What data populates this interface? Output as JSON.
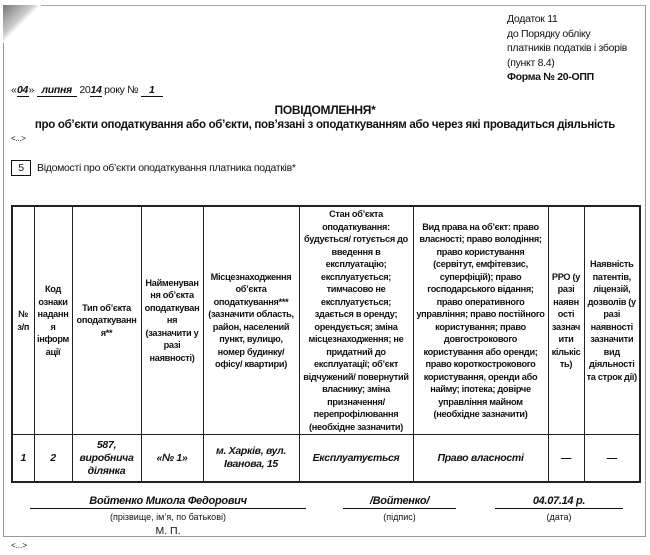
{
  "annex": {
    "lines": [
      "Додаток 11",
      "до Порядку обліку",
      "платників податків і зборів",
      "(пункт 8.4)"
    ],
    "form": "Форма № 20-ОПП"
  },
  "date_line": {
    "open_quote": "«",
    "day": "04",
    "close_quote": "»",
    "month": "липня",
    "year_prefix": "20",
    "year_suffix": "14",
    "year_word": "року №",
    "number": "1"
  },
  "title": "ПОВІДОМЛЕННЯ*",
  "subtitle": "про об’єкти оподаткування або об’єкти, пов’язані з оподаткуванням або через які провадиться діяльність",
  "ellipsis": "<...>",
  "section": {
    "number": "5",
    "title": "Відомості про об’єкти оподаткування платника податків*"
  },
  "table": {
    "headers": [
      "№ з/п",
      "Код ознаки надання інформації",
      "Тип об’єкта оподаткування**",
      "Найменування об’єкта оподаткування (зазначити у разі наявності)",
      "Місцезнаходження об’єкта оподаткування*** (зазначити область, район, населений пункт, вулицю, номер будинку/офісу/ квартири)",
      "Стан об’єкта оподаткування: будується/ готується до введення в експлуатацію; експлуатується; тимчасово не експлуатується; здається в оренду; орендується; зміна місцезнаходження; не придатний до експлуатації; об’єкт відчужений/ повернутий власнику; зміна призначення/ перепрофілювання (необхідне зазначити)",
      "Вид права на об’єкт: право власності; право володіння; право користування (сервітут, емфітевзис, суперфіцій); право господарського відання; право оперативного управління; право постійного користування; право довгострокового користування або оренди; право короткострокового користування, оренди або найму; іпотека; довірче управління майном (необхідне зазначити)",
      "РРО (у разі наявності зазначити кількість)",
      "Наявність патентів, ліцензій, дозволів (у разі наявності зазначити вид діяльності та строк дії)"
    ],
    "rows": [
      [
        "1",
        "2",
        "587, виробнича ділянка",
        "«№ 1»",
        "м. Харків, вул. Іванова, 15",
        "Експлуатується",
        "Право власності",
        "—",
        "—"
      ]
    ]
  },
  "signature": {
    "name": "Войтенко Микола Федорович",
    "name_caption": "(прізвище, ім’я, по батькові)",
    "stamp": "М. П.",
    "sign": "/Войтенко/",
    "sign_caption": "(підпис)",
    "date": "04.07.14 р.",
    "date_caption": "(дата)"
  }
}
